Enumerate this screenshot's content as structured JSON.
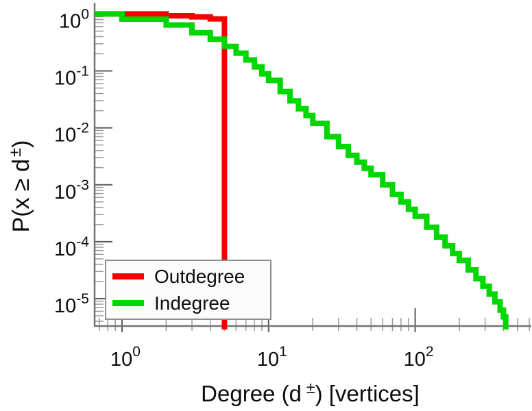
{
  "labels": {
    "y_pre": "P(x ≥ d",
    "y_sup": "±",
    "y_post": ")",
    "x_pre": "Degree (d",
    "x_sup": "±",
    "x_post": ") [vertices]"
  },
  "legend": {
    "position": "lower-left",
    "items": [
      {
        "label": "Outdegree",
        "color": "#f40000"
      },
      {
        "label": "Indegree",
        "color": "#00d600"
      }
    ]
  },
  "axis_style": {
    "axis_color": "#737373",
    "major_tick_color": "#5a5a5a",
    "minor_tick_color": "#9a9a9a",
    "tick_label_color": "#0d0d0d"
  },
  "chart_data": {
    "type": "line",
    "subtype": "ccdf-stairs",
    "scale": "log-log",
    "title": "",
    "xlabel": "Degree (d±) [vertices]",
    "ylabel": "P(x ≥ d±)",
    "grid": false,
    "xlim": [
      0.65,
      620
    ],
    "ylim": [
      3.3e-06,
      1.45
    ],
    "x_major_tick_exponents": [
      0,
      1,
      2
    ],
    "y_major_tick_exponents": [
      0,
      -1,
      -2,
      -3,
      -4,
      -5
    ],
    "line_width": 8,
    "series": [
      {
        "name": "Outdegree",
        "color": "#f40000",
        "points": [
          [
            0.65,
            1.0
          ],
          [
            2,
            0.93
          ],
          [
            3,
            0.89
          ],
          [
            4,
            0.82
          ],
          [
            5,
            2e-07
          ]
        ]
      },
      {
        "name": "Indegree",
        "color": "#00d600",
        "points": [
          [
            0.65,
            1.0
          ],
          [
            1,
            0.81
          ],
          [
            2,
            0.64
          ],
          [
            3,
            0.47
          ],
          [
            4,
            0.36
          ],
          [
            5,
            0.27
          ],
          [
            6,
            0.205
          ],
          [
            7,
            0.156
          ],
          [
            8,
            0.118
          ],
          [
            9,
            0.089
          ],
          [
            10,
            0.068
          ],
          [
            12,
            0.0435
          ],
          [
            14,
            0.0298
          ],
          [
            16,
            0.0216
          ],
          [
            18,
            0.0165
          ],
          [
            20,
            0.012
          ],
          [
            25,
            0.007
          ],
          [
            30,
            0.0047
          ],
          [
            35,
            0.0033
          ],
          [
            40,
            0.0025
          ],
          [
            45,
            0.00195
          ],
          [
            50,
            0.0015
          ],
          [
            60,
            0.001
          ],
          [
            70,
            0.00068
          ],
          [
            80,
            0.0005
          ],
          [
            90,
            0.00037
          ],
          [
            100,
            0.00028
          ],
          [
            120,
            0.00018
          ],
          [
            140,
            0.00012
          ],
          [
            160,
            8.5e-05
          ],
          [
            180,
            6.2e-05
          ],
          [
            200,
            4.7e-05
          ],
          [
            230,
            3.2e-05
          ],
          [
            260,
            2.25e-05
          ],
          [
            290,
            1.65e-05
          ],
          [
            320,
            1.2e-05
          ],
          [
            350,
            8.8e-06
          ],
          [
            380,
            6.3e-06
          ],
          [
            400,
            4.8e-06
          ],
          [
            415,
            2.8e-06
          ]
        ]
      }
    ]
  }
}
